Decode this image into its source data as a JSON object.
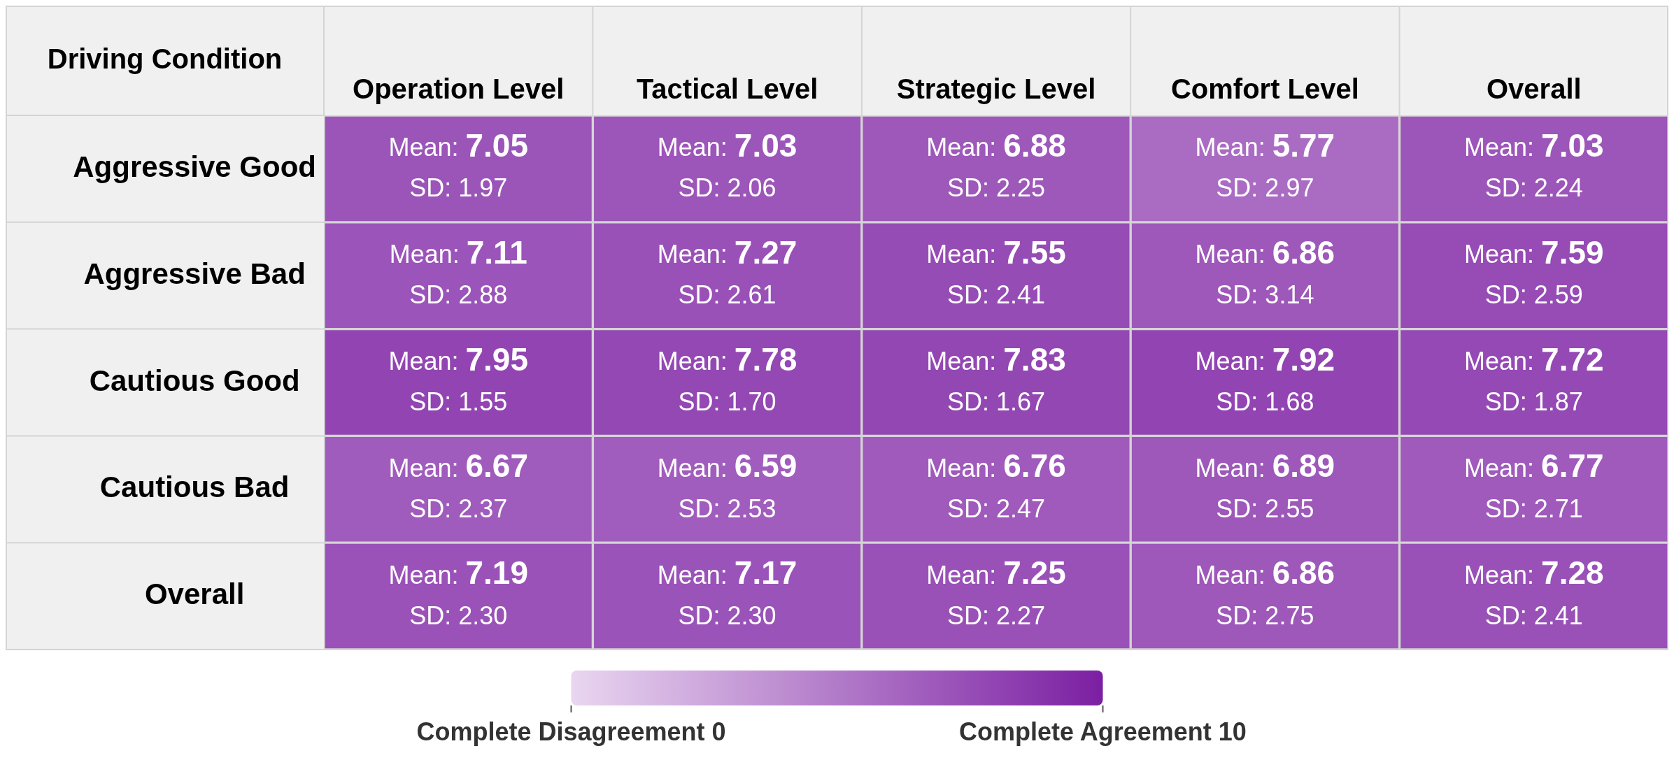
{
  "chart_data": {
    "type": "heatmap",
    "ylabel": "Driving Condition",
    "categories": [
      "Operation Level",
      "Tactical Level",
      "Strategic Level",
      "Comfort Level",
      "Overall"
    ],
    "y_categories": [
      "Aggressive Good",
      "Aggressive Bad",
      "Cautious Good",
      "Cautious Bad",
      "Overall"
    ],
    "cells": [
      [
        7.05,
        7.03,
        6.88,
        5.77,
        7.03
      ],
      [
        7.11,
        7.27,
        7.55,
        6.86,
        7.59
      ],
      [
        7.95,
        7.78,
        7.83,
        7.92,
        7.72
      ],
      [
        6.67,
        6.59,
        6.76,
        6.89,
        6.77
      ],
      [
        7.19,
        7.17,
        7.25,
        6.86,
        7.28
      ]
    ],
    "cell_labels": [
      [
        "Mean: 7.05\nSD: 1.97",
        "Mean: 7.03\nSD: 2.06",
        "Mean: 6.88\nSD: 2.25",
        "Mean: 5.77\nSD: 2.97",
        "Mean: 7.03\nSD: 2.24"
      ],
      [
        "Mean: 7.11\nSD: 2.88",
        "Mean: 7.27\nSD: 2.61",
        "Mean: 7.55\nSD: 2.41",
        "Mean: 6.86\nSD: 3.14",
        "Mean: 7.59\nSD: 2.59"
      ],
      [
        "Mean: 7.95\nSD: 1.55",
        "Mean: 7.78\nSD: 1.70",
        "Mean: 7.83\nSD: 1.67",
        "Mean: 7.92\nSD: 1.68",
        "Mean: 7.72\nSD: 1.87"
      ],
      [
        "Mean: 6.67\nSD: 2.37",
        "Mean: 6.59\nSD: 2.53",
        "Mean: 6.76\nSD: 2.47",
        "Mean: 6.89\nSD: 2.55",
        "Mean: 6.77\nSD: 2.71"
      ],
      [
        "Mean: 7.19\nSD: 2.30",
        "Mean: 7.17\nSD: 2.30",
        "Mean: 7.25\nSD: 2.27",
        "Mean: 6.86\nSD: 2.75",
        "Mean: 7.28\nSD: 2.41"
      ]
    ],
    "clim": [
      0,
      10
    ],
    "cticks": [
      {
        "value": 0,
        "label": "Complete Disagreement 0"
      },
      {
        "value": 10,
        "label": "Complete Agreement 10"
      }
    ]
  }
}
